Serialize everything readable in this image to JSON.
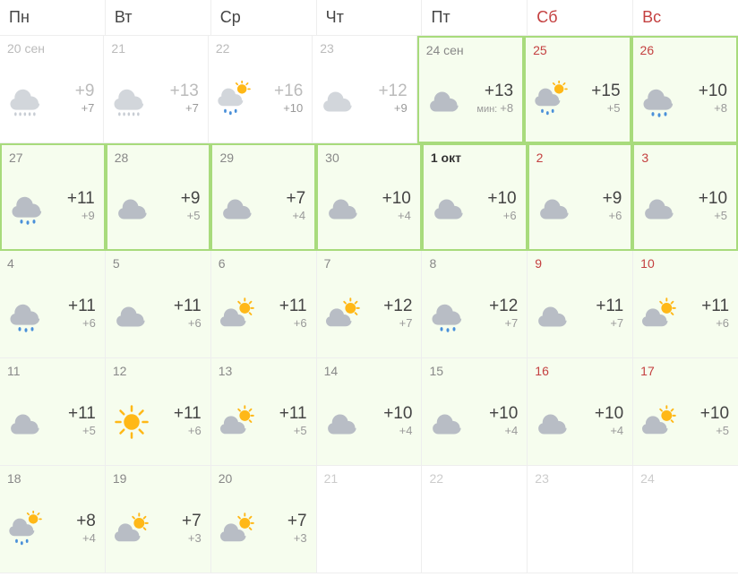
{
  "colors": {
    "weekday_header": "#454545",
    "weekend_header": "#c44040",
    "border": "#eeeeee",
    "highlight_bg": "#f6fdee",
    "highlight_border": "#a8db7c",
    "date_text": "#888888",
    "date_bold": "#333333",
    "temp_high": "#444444",
    "temp_low": "#999999",
    "past_text": "#bbbbbb",
    "future_empty": "#cccccc",
    "cloud_gray": "#b8bdc5",
    "cloud_past": "#d2d6db",
    "sun_yellow": "#ffb817",
    "rain_blue": "#4a90d9"
  },
  "headers": [
    {
      "label": "Пн",
      "weekend": false
    },
    {
      "label": "Вт",
      "weekend": false
    },
    {
      "label": "Ср",
      "weekend": false
    },
    {
      "label": "Чт",
      "weekend": false
    },
    {
      "label": "Пт",
      "weekend": false
    },
    {
      "label": "Сб",
      "weekend": true
    },
    {
      "label": "Вс",
      "weekend": true
    }
  ],
  "weeks": [
    [
      {
        "date": "20 сен",
        "icon": "rain",
        "high": "+9",
        "low": "+7",
        "past": true
      },
      {
        "date": "21",
        "icon": "rain",
        "high": "+13",
        "low": "+7",
        "past": true
      },
      {
        "date": "22",
        "icon": "partly-rain",
        "high": "+16",
        "low": "+10",
        "past": true
      },
      {
        "date": "23",
        "icon": "cloudy",
        "high": "+12",
        "low": "+9",
        "past": true
      },
      {
        "date": "24 сен",
        "icon": "cloudy",
        "high": "+13",
        "low_prefix": "мин: ",
        "low": "+8",
        "highlight": true,
        "highlight_border": true
      },
      {
        "date": "25",
        "icon": "partly-rain",
        "high": "+15",
        "low": "+5",
        "highlight": true,
        "highlight_border": true,
        "weekend": true
      },
      {
        "date": "26",
        "icon": "rain-light",
        "high": "+10",
        "low": "+8",
        "highlight": true,
        "highlight_border": true,
        "weekend": true
      }
    ],
    [
      {
        "date": "27",
        "icon": "rain-light",
        "high": "+11",
        "low": "+9",
        "highlight": true,
        "highlight_border": true
      },
      {
        "date": "28",
        "icon": "cloudy",
        "high": "+9",
        "low": "+5",
        "highlight": true,
        "highlight_border": true
      },
      {
        "date": "29",
        "icon": "cloudy",
        "high": "+7",
        "low": "+4",
        "highlight": true,
        "highlight_border": true
      },
      {
        "date": "30",
        "icon": "cloudy",
        "high": "+10",
        "low": "+4",
        "highlight": true,
        "highlight_border": true
      },
      {
        "date": "1 окт",
        "icon": "cloudy",
        "high": "+10",
        "low": "+6",
        "highlight": true,
        "highlight_border": true,
        "bold": true
      },
      {
        "date": "2",
        "icon": "cloudy",
        "high": "+9",
        "low": "+6",
        "highlight": true,
        "highlight_border": true,
        "weekend": true
      },
      {
        "date": "3",
        "icon": "cloudy",
        "high": "+10",
        "low": "+5",
        "highlight": true,
        "highlight_border": true,
        "weekend": true
      }
    ],
    [
      {
        "date": "4",
        "icon": "rain-light",
        "high": "+11",
        "low": "+6",
        "highlight": true
      },
      {
        "date": "5",
        "icon": "cloudy",
        "high": "+11",
        "low": "+6",
        "highlight": true
      },
      {
        "date": "6",
        "icon": "partly",
        "high": "+11",
        "low": "+6",
        "highlight": true
      },
      {
        "date": "7",
        "icon": "partly",
        "high": "+12",
        "low": "+7",
        "highlight": true
      },
      {
        "date": "8",
        "icon": "rain-light",
        "high": "+12",
        "low": "+7",
        "highlight": true
      },
      {
        "date": "9",
        "icon": "cloudy",
        "high": "+11",
        "low": "+7",
        "highlight": true,
        "weekend": true
      },
      {
        "date": "10",
        "icon": "partly",
        "high": "+11",
        "low": "+6",
        "highlight": true,
        "weekend": true
      }
    ],
    [
      {
        "date": "11",
        "icon": "cloudy",
        "high": "+11",
        "low": "+5",
        "highlight": true
      },
      {
        "date": "12",
        "icon": "sunny",
        "high": "+11",
        "low": "+6",
        "highlight": true
      },
      {
        "date": "13",
        "icon": "partly",
        "high": "+11",
        "low": "+5",
        "highlight": true
      },
      {
        "date": "14",
        "icon": "cloudy",
        "high": "+10",
        "low": "+4",
        "highlight": true
      },
      {
        "date": "15",
        "icon": "cloudy",
        "high": "+10",
        "low": "+4",
        "highlight": true
      },
      {
        "date": "16",
        "icon": "cloudy",
        "high": "+10",
        "low": "+4",
        "highlight": true,
        "weekend": true
      },
      {
        "date": "17",
        "icon": "partly",
        "high": "+10",
        "low": "+5",
        "highlight": true,
        "weekend": true
      }
    ],
    [
      {
        "date": "18",
        "icon": "partly-rain",
        "high": "+8",
        "low": "+4",
        "highlight": true
      },
      {
        "date": "19",
        "icon": "partly",
        "high": "+7",
        "low": "+3",
        "highlight": true
      },
      {
        "date": "20",
        "icon": "partly",
        "high": "+7",
        "low": "+3",
        "highlight": true
      },
      {
        "date": "21",
        "empty": true
      },
      {
        "date": "22",
        "empty": true
      },
      {
        "date": "23",
        "empty": true,
        "weekend": true
      },
      {
        "date": "24",
        "empty": true,
        "weekend": true
      }
    ]
  ]
}
